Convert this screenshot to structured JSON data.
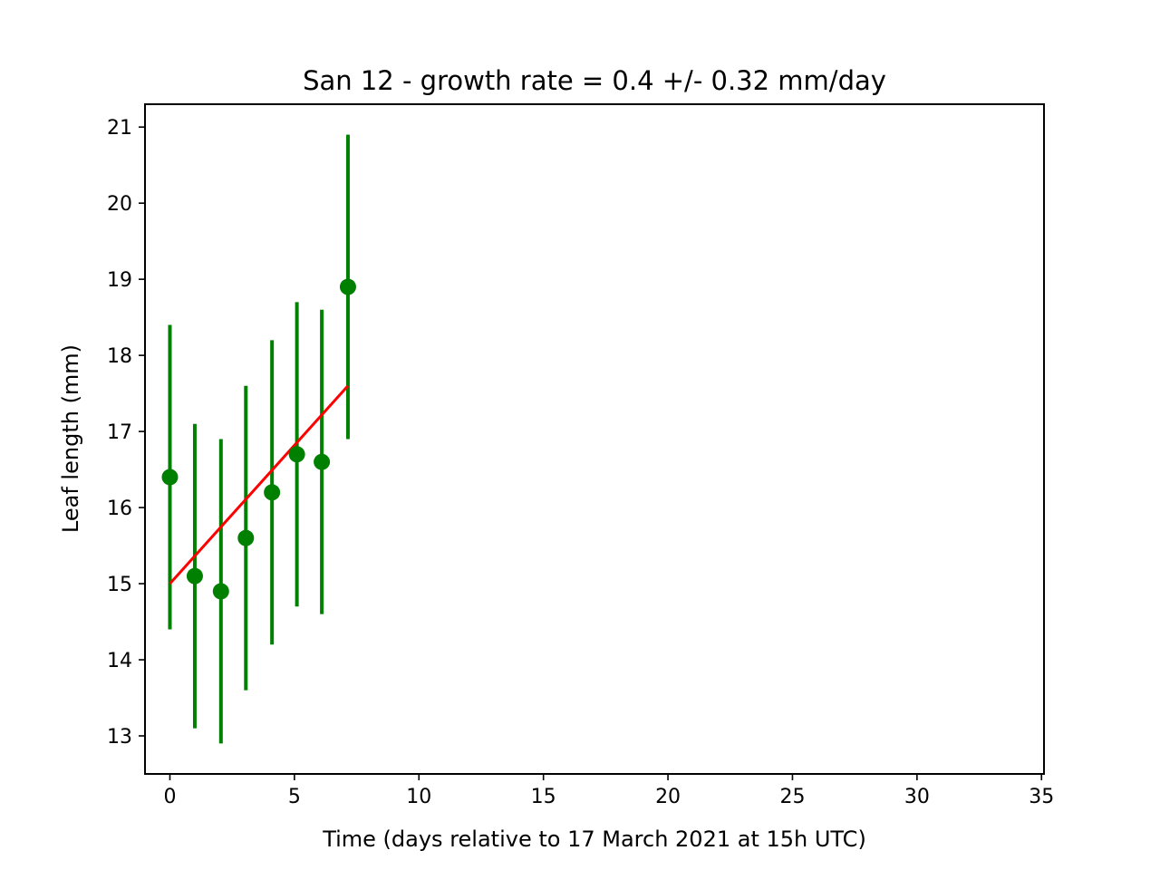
{
  "chart_data": {
    "type": "scatter",
    "title": "San 12  -  growth rate =  0.4 +/- 0.32 mm/day",
    "xlabel": "Time (days relative to 17 March 2021 at 15h UTC)",
    "ylabel": "Leaf length (mm)",
    "xlim": [
      -1,
      35.1
    ],
    "ylim": [
      12.5,
      21.3
    ],
    "xticks": [
      0,
      5,
      10,
      15,
      20,
      25,
      30,
      35
    ],
    "yticks": [
      13,
      14,
      15,
      16,
      17,
      18,
      19,
      20,
      21
    ],
    "grid": false,
    "series": [
      {
        "kind": "errorbar",
        "color": "#008000",
        "x": [
          0,
          1.0,
          2.05,
          3.05,
          4.1,
          5.1,
          6.1,
          7.15
        ],
        "y": [
          16.4,
          15.1,
          14.9,
          15.6,
          16.2,
          16.7,
          16.6,
          18.9
        ],
        "yerr": [
          2.0,
          2.0,
          2.0,
          2.0,
          2.0,
          2.0,
          2.0,
          2.0
        ]
      },
      {
        "kind": "fit_line",
        "color": "#ff0000",
        "x": [
          0,
          7.15
        ],
        "y": [
          15.0,
          17.6
        ]
      }
    ]
  }
}
